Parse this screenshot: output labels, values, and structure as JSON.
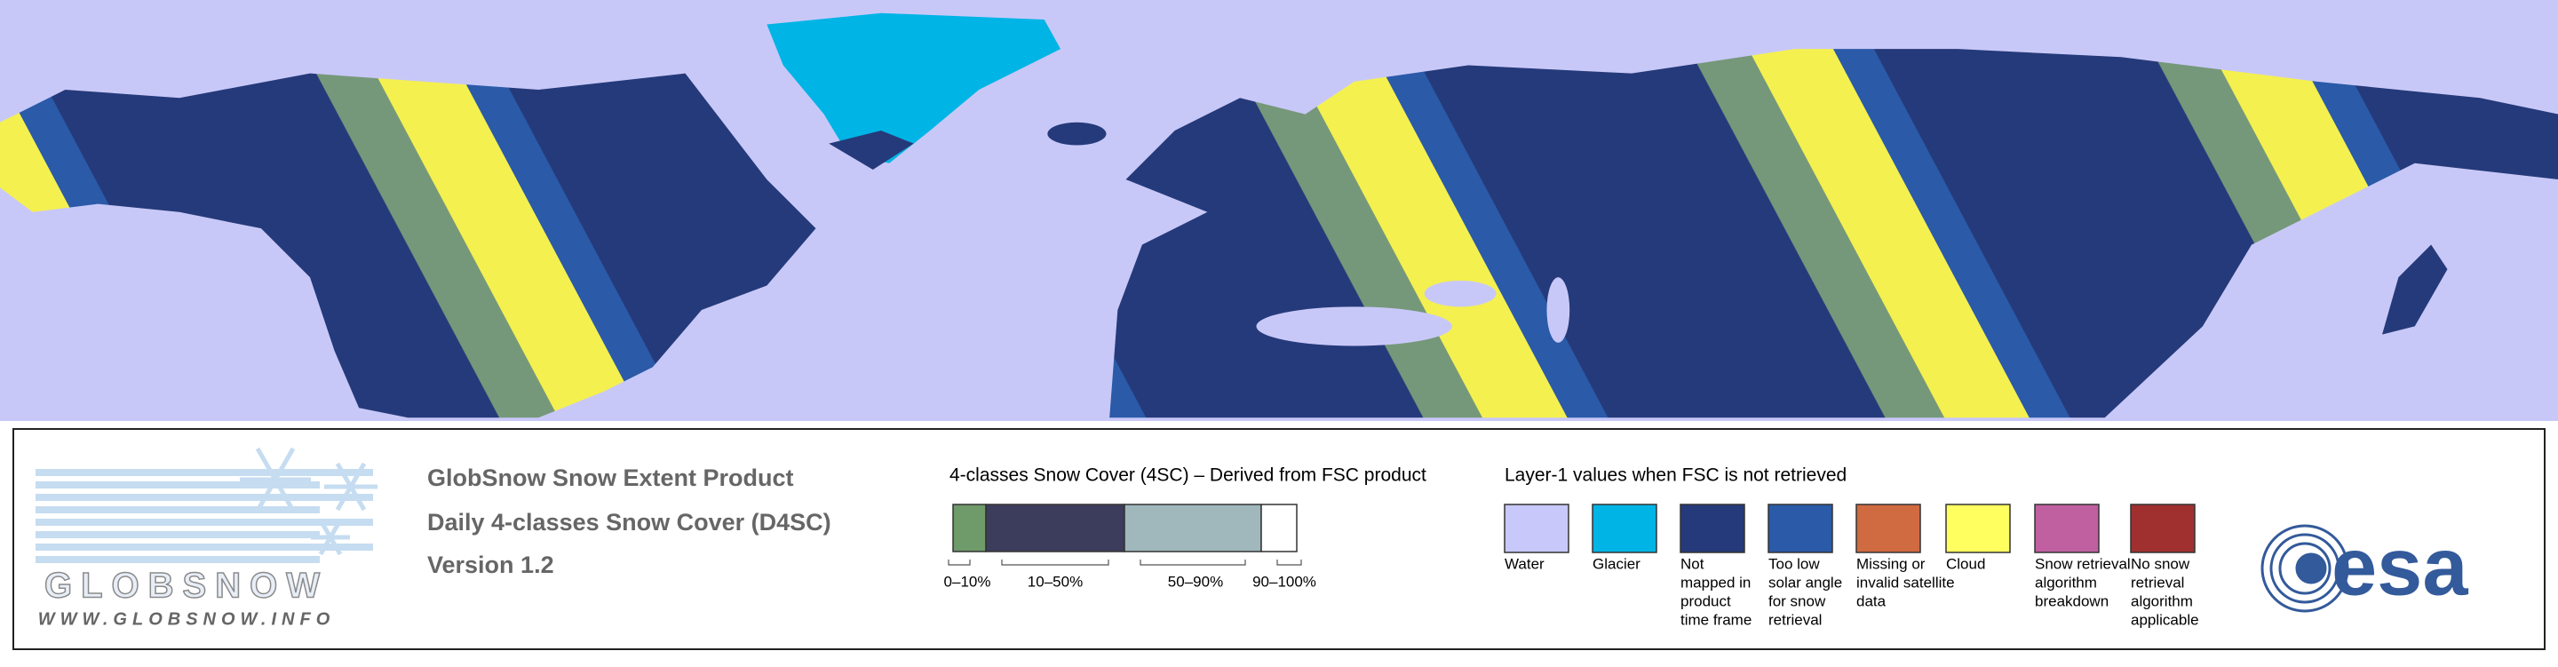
{
  "logo": {
    "name": "GLOBSNOW",
    "url": "WWW.GLOBSNOW.INFO"
  },
  "product": {
    "lines": [
      "GlobSnow Snow Extent Product",
      "Daily 4-classes Snow Cover (D4SC)",
      "Version 1.2"
    ]
  },
  "scale": {
    "title": "4-classes Snow Cover (4SC) – Derived from FSC product",
    "classes": [
      {
        "label": "0–10%",
        "color": "#6f9a6a"
      },
      {
        "label": "10–50%",
        "color": "#3c3c5c"
      },
      {
        "label": "50–90%",
        "color": "#a0b8bc"
      },
      {
        "label": "90–100%",
        "color": "#ffffff"
      }
    ]
  },
  "layer1": {
    "title": "Layer-1 values when FSC is not retrieved",
    "items": [
      {
        "lines": [
          "Water"
        ],
        "color": "#c8c8fa"
      },
      {
        "lines": [
          "Glacier"
        ],
        "color": "#00b4e6"
      },
      {
        "lines": [
          "Not",
          "mapped in",
          "product",
          "time frame"
        ],
        "color": "#253a7a"
      },
      {
        "lines": [
          "Too low",
          "solar angle",
          "for snow",
          "retrieval"
        ],
        "color": "#2a5aa8"
      },
      {
        "lines": [
          "Missing or",
          "invalid satellite",
          "data"
        ],
        "color": "#d06a40"
      },
      {
        "lines": [
          "Cloud"
        ],
        "color": "#ffff60"
      },
      {
        "lines": [
          "Snow retrieval",
          "algorithm",
          "breakdown"
        ],
        "color": "#c060a0"
      },
      {
        "lines": [
          "No snow",
          "retrieval",
          "algorithm",
          "applicable"
        ],
        "color": "#a03030"
      }
    ]
  },
  "agency": "esa"
}
